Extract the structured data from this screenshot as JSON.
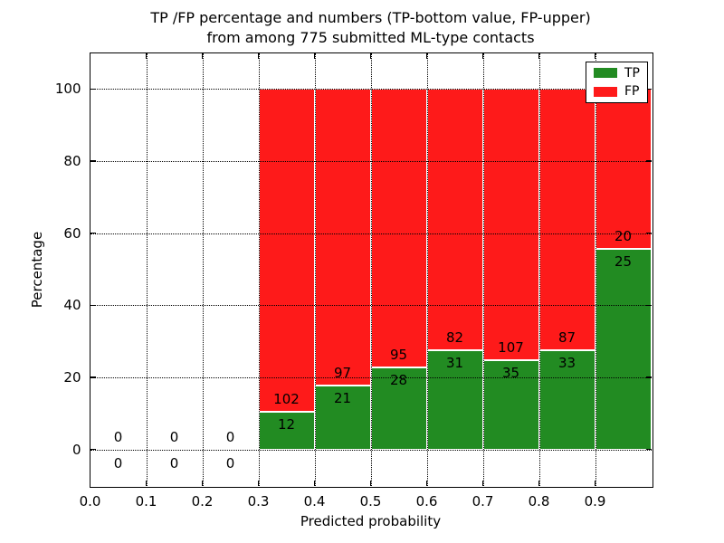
{
  "chart_data": {
    "type": "bar",
    "stacked": true,
    "title_line1": "TP /FP percentage and numbers (TP-bottom value, FP-upper)",
    "title_line2": "from among 775 submitted ML-type contacts",
    "total_contacts": 775,
    "xlabel": "Predicted probability",
    "ylabel": "Percentage",
    "xlim": [
      0.0,
      1.0
    ],
    "ylim": [
      -10,
      110
    ],
    "grid_style": "dotted",
    "bar_edge_color": "#ffffff",
    "text_color": "#000000",
    "background_color": "#ffffff",
    "x_ticks": [
      {
        "value": 0.0,
        "label": "0.0"
      },
      {
        "value": 0.1,
        "label": "0.1"
      },
      {
        "value": 0.2,
        "label": "0.2"
      },
      {
        "value": 0.3,
        "label": "0.3"
      },
      {
        "value": 0.4,
        "label": "0.4"
      },
      {
        "value": 0.5,
        "label": "0.5"
      },
      {
        "value": 0.6,
        "label": "0.6"
      },
      {
        "value": 0.7,
        "label": "0.7"
      },
      {
        "value": 0.8,
        "label": "0.8"
      },
      {
        "value": 0.9,
        "label": "0.9"
      }
    ],
    "y_ticks": [
      {
        "value": 0,
        "label": "0"
      },
      {
        "value": 20,
        "label": "20"
      },
      {
        "value": 40,
        "label": "40"
      },
      {
        "value": 60,
        "label": "60"
      },
      {
        "value": 80,
        "label": "80"
      },
      {
        "value": 100,
        "label": "100"
      }
    ],
    "legend": {
      "position": "upper right",
      "items": [
        {
          "label": "TP",
          "color": "#228b22"
        },
        {
          "label": "FP",
          "color": "#fe1a1a"
        }
      ]
    },
    "bins": [
      {
        "x0": 0.0,
        "x1": 0.1,
        "tp": 0,
        "fp": 0
      },
      {
        "x0": 0.1,
        "x1": 0.2,
        "tp": 0,
        "fp": 0
      },
      {
        "x0": 0.2,
        "x1": 0.3,
        "tp": 0,
        "fp": 0
      },
      {
        "x0": 0.3,
        "x1": 0.4,
        "tp": 12,
        "fp": 102
      },
      {
        "x0": 0.4,
        "x1": 0.5,
        "tp": 21,
        "fp": 97
      },
      {
        "x0": 0.5,
        "x1": 0.6,
        "tp": 28,
        "fp": 95
      },
      {
        "x0": 0.6,
        "x1": 0.7,
        "tp": 31,
        "fp": 82
      },
      {
        "x0": 0.7,
        "x1": 0.8,
        "tp": 35,
        "fp": 107
      },
      {
        "x0": 0.8,
        "x1": 0.9,
        "tp": 33,
        "fp": 87
      },
      {
        "x0": 0.9,
        "x1": 1.0,
        "tp": 25,
        "fp": 20
      }
    ]
  }
}
